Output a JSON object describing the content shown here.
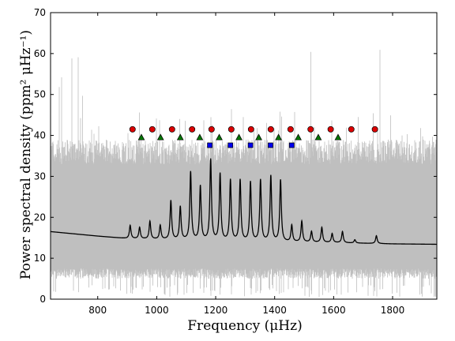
{
  "chart_data": {
    "type": "line",
    "xlabel_main": "Frequency",
    "xlabel_unit": "(μHz)",
    "ylabel_main": "Power spectral density",
    "ylabel_unit": "(ppm² μHz⁻¹)",
    "xlim": [
      640,
      1950
    ],
    "ylim": [
      0,
      70
    ],
    "x_ticks": [
      800,
      1000,
      1200,
      1400,
      1600,
      1800
    ],
    "y_ticks": [
      0,
      10,
      20,
      30,
      40,
      50,
      60,
      70
    ],
    "grid": false,
    "legend": "none",
    "noise_series": {
      "color": "#bfbfbf",
      "typical_range": [
        5,
        37
      ],
      "outer_range": [
        0.5,
        50
      ]
    },
    "fit_series": {
      "color": "#000000",
      "background": [
        [
          640,
          16.5
        ],
        [
          800,
          15.4
        ],
        [
          900,
          14.8
        ],
        [
          1000,
          14.6
        ],
        [
          1200,
          14.2
        ],
        [
          1400,
          14.0
        ],
        [
          1600,
          13.8
        ],
        [
          1800,
          13.5
        ],
        [
          1950,
          13.4
        ]
      ],
      "peaks": [
        [
          910,
          18.0
        ],
        [
          942,
          17.5
        ],
        [
          977,
          19.0
        ],
        [
          1012,
          18.0
        ],
        [
          1048,
          24.0
        ],
        [
          1080,
          22.5
        ],
        [
          1115,
          31.0
        ],
        [
          1148,
          27.5
        ],
        [
          1183,
          34.0
        ],
        [
          1215,
          30.5
        ],
        [
          1250,
          29.0
        ],
        [
          1283,
          29.0
        ],
        [
          1318,
          28.5
        ],
        [
          1352,
          29.0
        ],
        [
          1387,
          30.0
        ],
        [
          1420,
          29.0
        ],
        [
          1458,
          18.0
        ],
        [
          1492,
          19.0
        ],
        [
          1525,
          16.5
        ],
        [
          1560,
          17.5
        ],
        [
          1595,
          16.0
        ],
        [
          1630,
          16.5
        ],
        [
          1672,
          14.5
        ],
        [
          1745,
          15.5
        ]
      ]
    },
    "mode_markers": {
      "circles": {
        "color": "#dd0000",
        "y": 41.5,
        "x": [
          918,
          985,
          1052,
          1120,
          1186,
          1253,
          1320,
          1387,
          1454,
          1522,
          1590,
          1660,
          1740
        ]
      },
      "triangles": {
        "color": "#007700",
        "y": 39.5,
        "x": [
          948,
          1013,
          1080,
          1146,
          1212,
          1279,
          1346,
          1413,
          1480,
          1548,
          1615
        ]
      },
      "squares": {
        "color": "#0000ee",
        "y": 37.6,
        "x": [
          1180,
          1250,
          1318,
          1386,
          1458
        ]
      }
    }
  }
}
